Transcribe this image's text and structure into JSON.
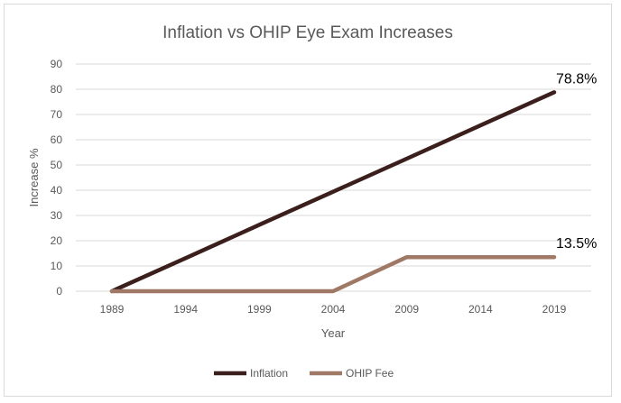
{
  "chart_data": {
    "type": "line",
    "title": "Inflation vs OHIP Eye Exam Increases",
    "xlabel": "Year",
    "ylabel": "Increase %",
    "x": [
      1989,
      1994,
      1999,
      2004,
      2009,
      2014,
      2019
    ],
    "ylim": [
      0,
      90
    ],
    "yticks": [
      0,
      10,
      20,
      30,
      40,
      50,
      60,
      70,
      80,
      90
    ],
    "grid": true,
    "legend_position": "bottom",
    "series": [
      {
        "name": "Inflation",
        "color": "#3b1f1c",
        "values": [
          0,
          13.1,
          26.3,
          39.4,
          52.5,
          65.7,
          78.8
        ],
        "end_label": "78.8%"
      },
      {
        "name": "OHIP Fee",
        "color": "#a07866",
        "values": [
          0,
          0,
          0,
          0,
          13.5,
          13.5,
          13.5
        ],
        "end_label": "13.5%"
      }
    ]
  }
}
